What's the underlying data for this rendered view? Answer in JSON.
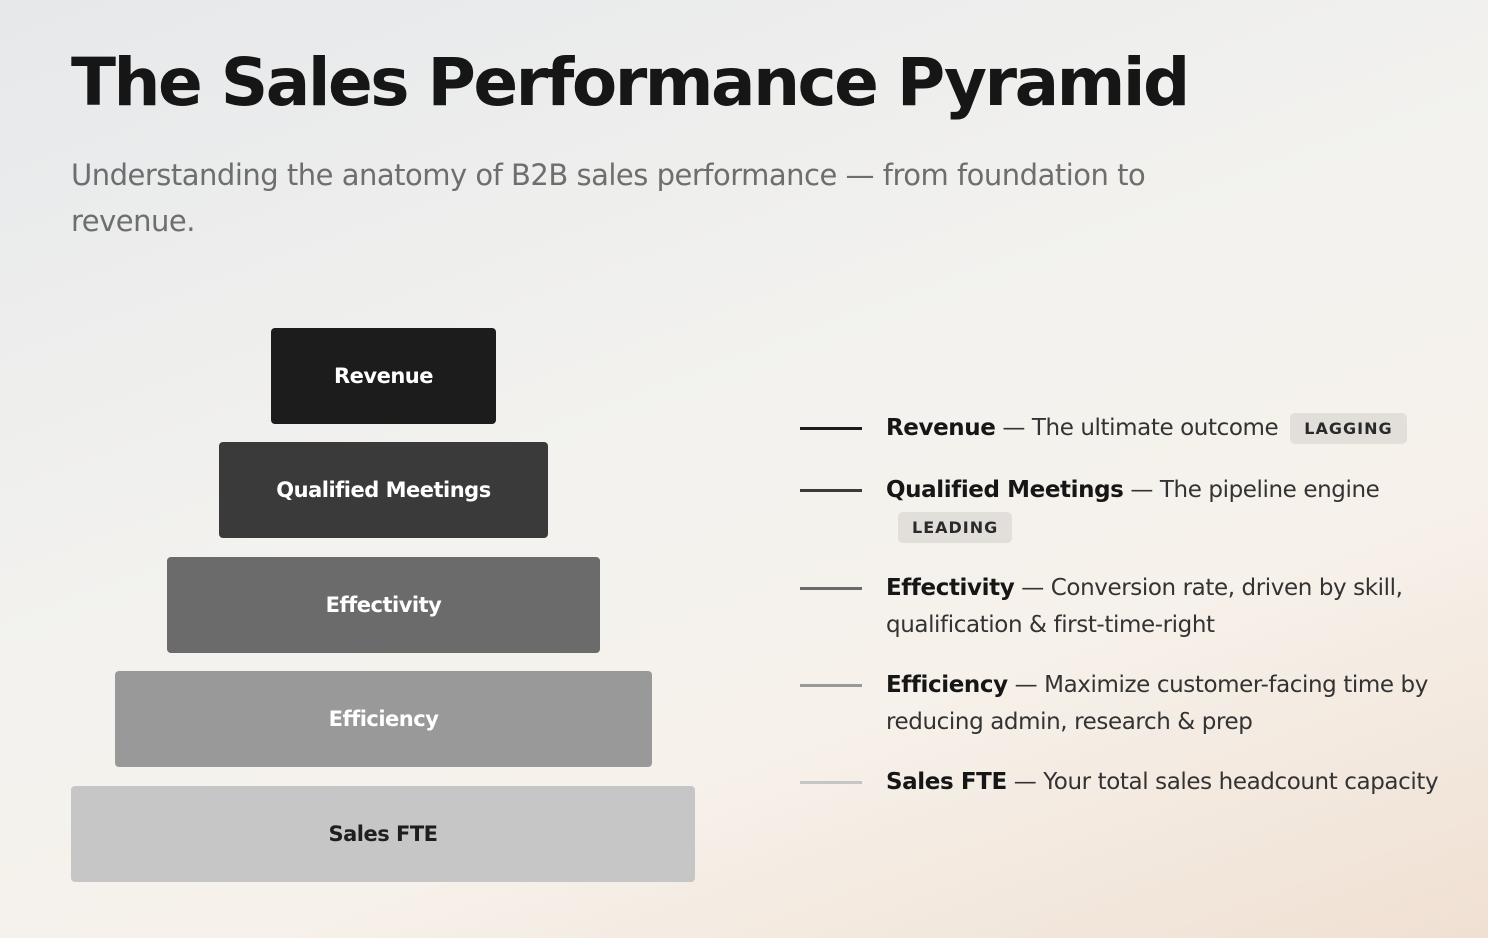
{
  "header": {
    "title": "The Sales Performance Pyramid",
    "subtitle": "Understanding the anatomy of B2B sales performance — from foundation to revenue."
  },
  "pyramid": {
    "levels": [
      {
        "label": "Revenue"
      },
      {
        "label": "Qualified Meetings"
      },
      {
        "label": "Effectivity"
      },
      {
        "label": "Efficiency"
      },
      {
        "label": "Sales FTE"
      }
    ]
  },
  "legend": {
    "items": [
      {
        "name": "Revenue",
        "description": "— The ultimate outcome",
        "tag": "LAGGING"
      },
      {
        "name": "Qualified Meetings",
        "description": "— The pipeline engine",
        "tag": "LEADING"
      },
      {
        "name": "Effectivity",
        "description": "— Conversion rate, driven by skill, qualification & first-time-right"
      },
      {
        "name": "Efficiency",
        "description": "— Maximize customer-facing time by reducing admin, research & prep"
      },
      {
        "name": "Sales FTE",
        "description": "— Your total sales headcount capacity"
      }
    ]
  }
}
